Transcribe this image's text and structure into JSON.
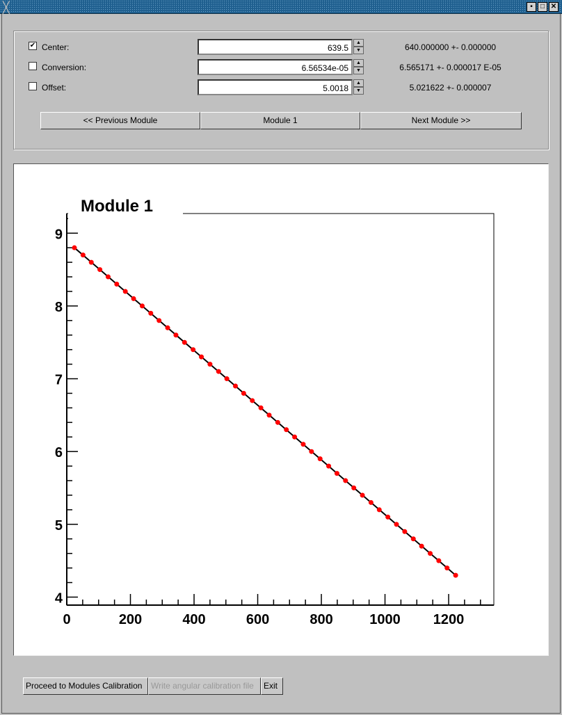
{
  "window": {
    "controls": [
      "minimize",
      "maximize",
      "close"
    ]
  },
  "params": [
    {
      "label": "Center:",
      "checked": true,
      "value": "639.5",
      "result": "640.000000 +- 0.000000"
    },
    {
      "label": "Conversion:",
      "checked": false,
      "value": "6.56534e-05",
      "result": "6.565171 +- 0.000017 E-05"
    },
    {
      "label": "Offset:",
      "checked": false,
      "value": "5.0018",
      "result": "5.021622 +- 0.000007"
    }
  ],
  "nav": {
    "prev": "<< Previous Module",
    "current": "Module 1",
    "next": "Next Module >>"
  },
  "bottom": {
    "proceed": "Proceed to Modules Calibration",
    "write": "Write angular calibration file",
    "exit": "Exit"
  },
  "chart_data": {
    "type": "scatter",
    "title": "Module 1",
    "xlabel": "",
    "ylabel": "",
    "xlim": [
      0,
      1342
    ],
    "ylim": [
      3.89,
      9.27
    ],
    "xticks": [
      "0",
      "200",
      "400",
      "600",
      "800",
      "1000",
      "1200"
    ],
    "yticks": [
      "4",
      "5",
      "6",
      "7",
      "8",
      "9"
    ],
    "marker_color": "#ff0000",
    "line_color": "#000000",
    "fit_line": {
      "x": [
        24,
        1222
      ],
      "y": [
        8.8,
        4.3
      ]
    },
    "x": [
      24,
      51,
      77,
      104,
      130,
      157,
      184,
      210,
      237,
      264,
      290,
      317,
      343,
      370,
      397,
      423,
      450,
      477,
      503,
      530,
      556,
      583,
      610,
      636,
      663,
      690,
      716,
      743,
      769,
      796,
      823,
      849,
      876,
      902,
      929,
      956,
      982,
      1009,
      1036,
      1062,
      1089,
      1115,
      1142,
      1169,
      1195,
      1222
    ],
    "y": [
      8.8,
      8.7,
      8.6,
      8.5,
      8.4,
      8.3,
      8.2,
      8.1,
      8.0,
      7.9,
      7.8,
      7.7,
      7.6,
      7.5,
      7.4,
      7.3,
      7.2,
      7.1,
      7.0,
      6.9,
      6.8,
      6.7,
      6.6,
      6.5,
      6.4,
      6.3,
      6.2,
      6.1,
      6.0,
      5.9,
      5.8,
      5.7,
      5.6,
      5.5,
      5.4,
      5.3,
      5.2,
      5.1,
      5.0,
      4.9,
      4.8,
      4.7,
      4.6,
      4.5,
      4.4,
      4.3
    ]
  }
}
